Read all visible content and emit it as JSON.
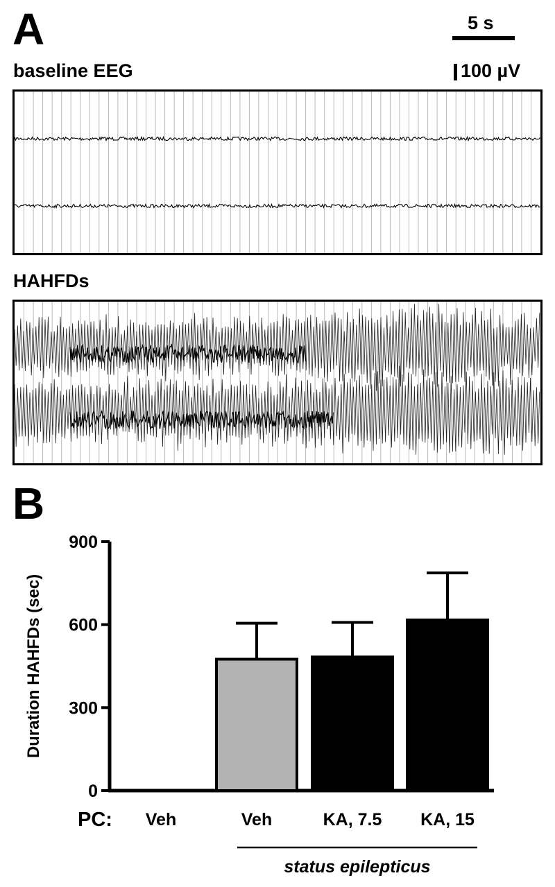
{
  "panel_a": {
    "letter": "A",
    "scale_time": "5 s",
    "scale_voltage": "100 µV",
    "baseline_label": "baseline EEG",
    "hahfd_label": "HAHFDs"
  },
  "panel_b": {
    "letter": "B"
  },
  "chart_data": {
    "type": "bar",
    "xlabel_prefix": "PC:",
    "ylabel": "Duration HAHFDs (sec)",
    "ylim": [
      0,
      900
    ],
    "yticks": [
      0,
      300,
      600,
      900
    ],
    "categories": [
      "Veh",
      "Veh",
      "KA, 7.5",
      "KA, 15"
    ],
    "values": [
      0,
      475,
      483,
      617
    ],
    "errors": [
      0,
      130,
      125,
      170
    ],
    "colors": [
      "#000000",
      "#b3b3b3",
      "#000000",
      "#000000"
    ],
    "group_bracket": {
      "label": "status epilepticus",
      "spans_categories": [
        1,
        3
      ]
    },
    "grid": false,
    "legend": "none"
  }
}
